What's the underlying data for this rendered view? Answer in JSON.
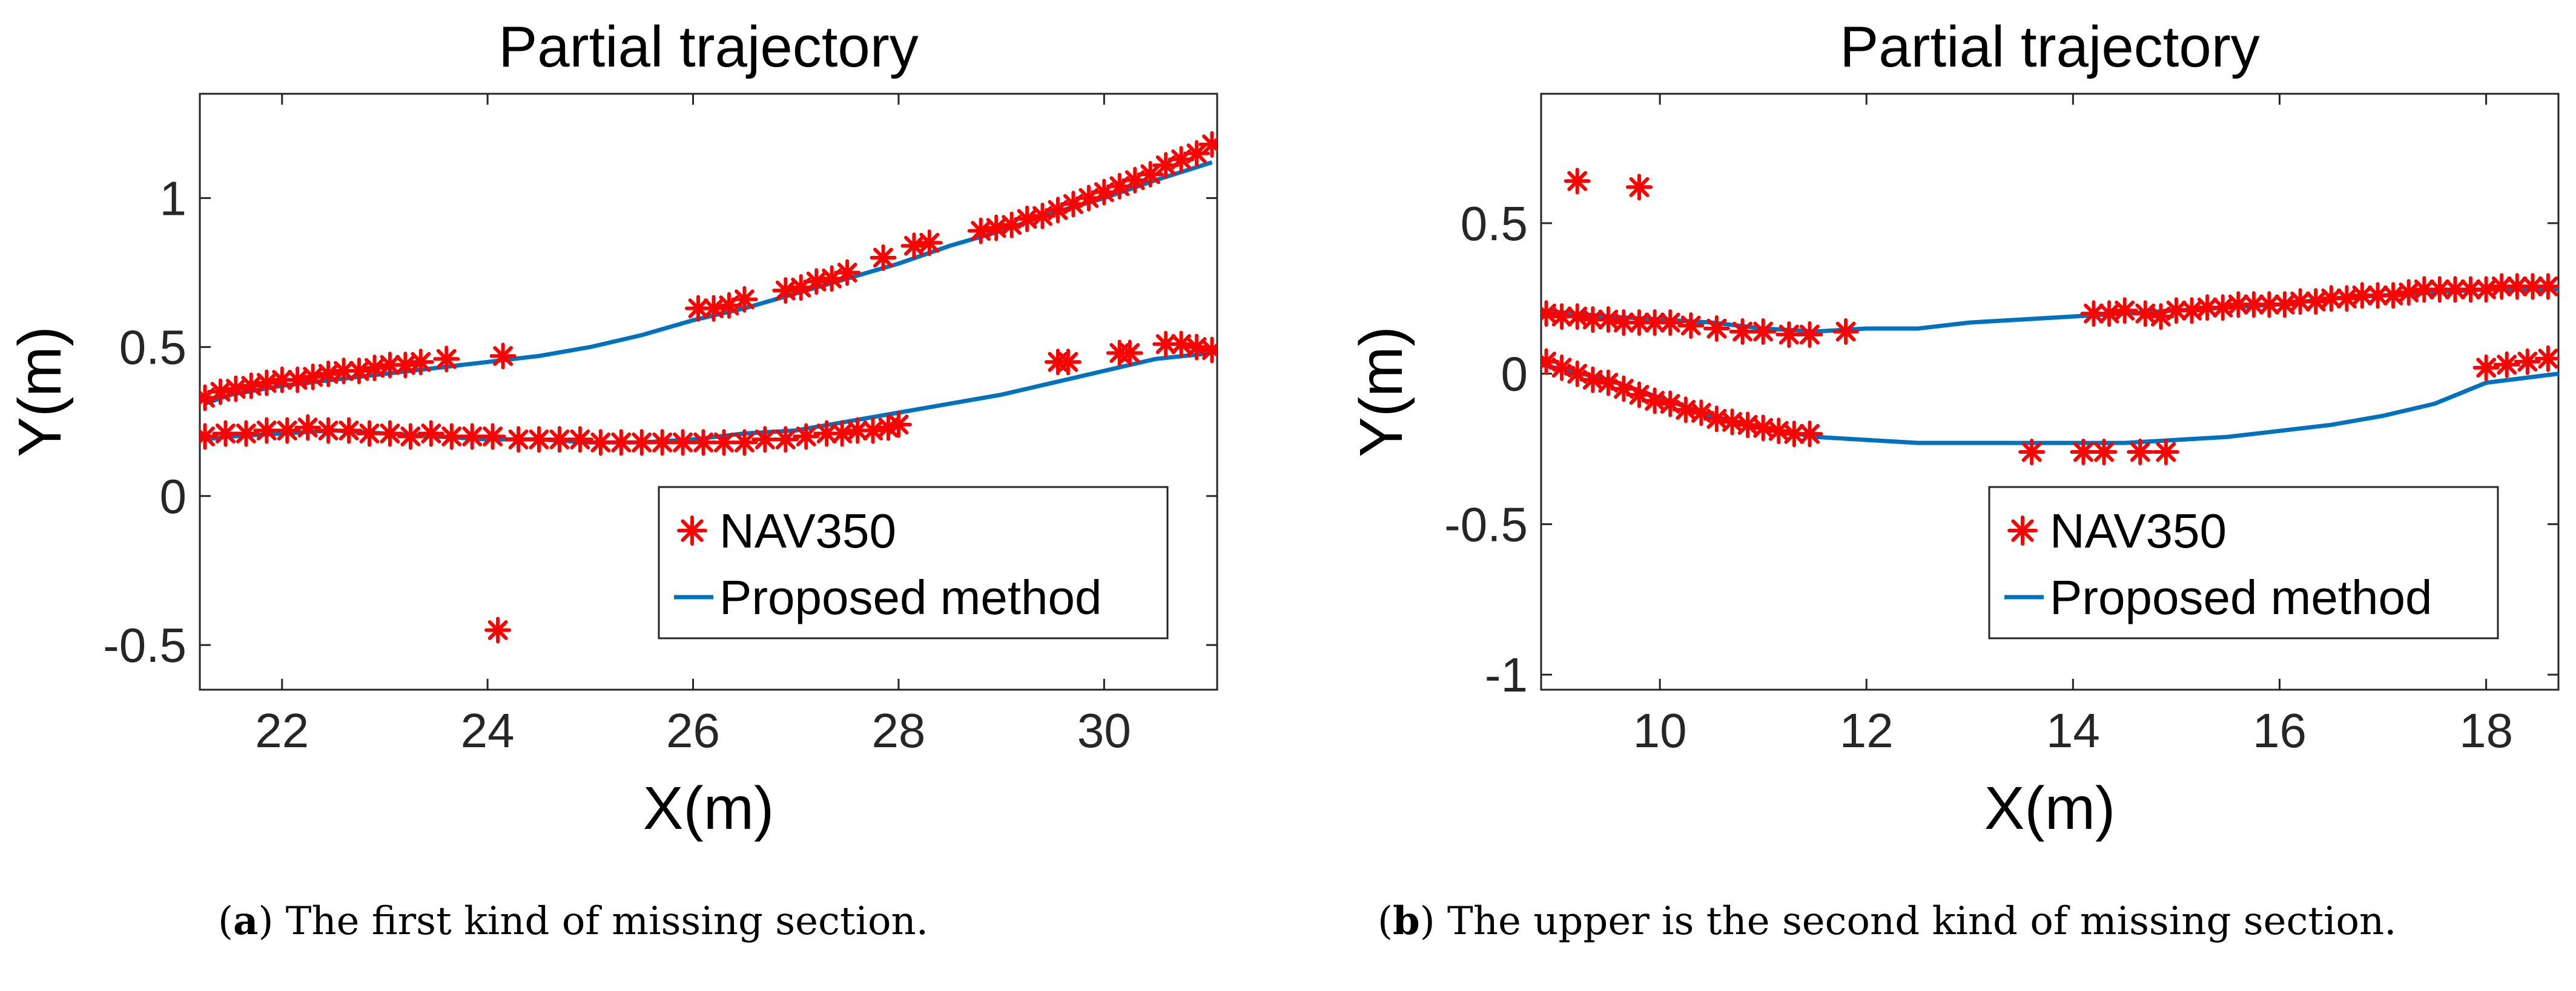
{
  "colors": {
    "nav": "#ff0000",
    "proposed": "#0072bd",
    "axis": "#262626",
    "text": "#000000"
  },
  "captions": [
    {
      "letter": "a",
      "prefix": "(",
      "suffix": ") The first kind of missing section."
    },
    {
      "letter": "b",
      "prefix": "(",
      "suffix": ") The upper is the second kind of missing section."
    }
  ],
  "chart_data": [
    {
      "type": "scatter",
      "title": "Partial trajectory",
      "xlabel": "X(m)",
      "ylabel": "Y(m)",
      "xlim": [
        21.2,
        31.1
      ],
      "ylim": [
        -0.65,
        1.35
      ],
      "xticks": [
        22,
        24,
        26,
        28,
        30
      ],
      "yticks": [
        -0.5,
        0,
        0.5,
        1
      ],
      "xtick_labels": [
        "22",
        "24",
        "26",
        "28",
        "30"
      ],
      "ytick_labels": [
        "-0.5",
        "0",
        "0.5",
        "1"
      ],
      "grid": false,
      "legend": {
        "position": "lower-right",
        "entries": [
          "NAV350",
          "Proposed method"
        ]
      },
      "series": [
        {
          "name": "NAV350",
          "type": "scatter",
          "marker": "asterisk",
          "x": [
            21.25,
            21.4,
            21.55,
            21.7,
            21.85,
            22.0,
            22.15,
            22.3,
            22.45,
            22.6,
            22.75,
            22.9,
            23.05,
            23.2,
            23.35,
            23.6,
            24.15,
            26.05,
            26.2,
            26.35,
            26.5,
            26.9,
            27.05,
            27.2,
            27.35,
            27.5,
            27.85,
            28.15,
            28.3,
            28.8,
            28.95,
            29.1,
            29.25,
            29.4,
            29.55,
            29.7,
            29.85,
            30.0,
            30.15,
            30.3,
            30.45,
            30.6,
            30.75,
            30.9,
            31.05,
            21.25,
            21.45,
            21.65,
            21.85,
            22.05,
            22.25,
            22.45,
            22.65,
            22.85,
            23.05,
            23.25,
            23.45,
            23.65,
            23.85,
            24.05,
            24.3,
            24.5,
            24.7,
            24.9,
            25.1,
            25.3,
            25.5,
            25.7,
            25.9,
            26.1,
            26.3,
            26.5,
            26.7,
            26.9,
            27.1,
            27.3,
            27.45,
            27.6,
            27.75,
            27.9,
            28.0,
            29.55,
            29.65,
            30.15,
            30.25,
            30.6,
            30.75,
            30.9,
            31.05,
            24.1
          ],
          "y": [
            0.33,
            0.35,
            0.36,
            0.37,
            0.38,
            0.39,
            0.39,
            0.4,
            0.41,
            0.42,
            0.42,
            0.43,
            0.44,
            0.44,
            0.45,
            0.46,
            0.47,
            0.63,
            0.63,
            0.64,
            0.66,
            0.69,
            0.7,
            0.72,
            0.73,
            0.75,
            0.8,
            0.84,
            0.85,
            0.89,
            0.9,
            0.91,
            0.93,
            0.94,
            0.96,
            0.98,
            1.0,
            1.02,
            1.04,
            1.06,
            1.08,
            1.11,
            1.13,
            1.15,
            1.18,
            0.2,
            0.21,
            0.21,
            0.22,
            0.22,
            0.23,
            0.22,
            0.22,
            0.21,
            0.21,
            0.2,
            0.21,
            0.2,
            0.2,
            0.2,
            0.19,
            0.19,
            0.19,
            0.19,
            0.18,
            0.18,
            0.18,
            0.18,
            0.18,
            0.18,
            0.18,
            0.18,
            0.19,
            0.19,
            0.2,
            0.21,
            0.21,
            0.22,
            0.22,
            0.23,
            0.24,
            0.45,
            0.45,
            0.48,
            0.48,
            0.51,
            0.51,
            0.5,
            0.49,
            -0.45
          ]
        },
        {
          "name": "Proposed method",
          "type": "line",
          "segments": [
            {
              "x": [
                21.25,
                21.5,
                22.0,
                22.5,
                23.0,
                23.5,
                24.0,
                24.5,
                25.0,
                25.5,
                26.0,
                26.5,
                27.0,
                27.5,
                28.0,
                28.5,
                29.0,
                29.5,
                30.0,
                30.5,
                31.05
              ],
              "y": [
                0.31,
                0.34,
                0.37,
                0.39,
                0.41,
                0.43,
                0.45,
                0.47,
                0.5,
                0.54,
                0.59,
                0.63,
                0.68,
                0.73,
                0.78,
                0.84,
                0.89,
                0.95,
                1.0,
                1.06,
                1.12
              ]
            },
            {
              "x": [
                21.25,
                21.5,
                22.0,
                22.5,
                23.0,
                23.5,
                24.0,
                24.5,
                25.0,
                25.5,
                26.0,
                26.5,
                27.0,
                27.5,
                28.0,
                28.5,
                29.0,
                29.5,
                30.0,
                30.5,
                31.05
              ],
              "y": [
                0.19,
                0.2,
                0.21,
                0.22,
                0.21,
                0.2,
                0.19,
                0.19,
                0.18,
                0.18,
                0.19,
                0.21,
                0.22,
                0.25,
                0.28,
                0.31,
                0.34,
                0.38,
                0.42,
                0.46,
                0.48
              ]
            }
          ]
        }
      ]
    },
    {
      "type": "scatter",
      "title": "Partial trajectory",
      "xlabel": "X(m)",
      "ylabel": "Y(m)",
      "xlim": [
        8.85,
        18.7
      ],
      "ylim": [
        -1.05,
        0.93
      ],
      "xticks": [
        10,
        12,
        14,
        16,
        18
      ],
      "yticks": [
        -1,
        -0.5,
        0,
        0.5
      ],
      "xtick_labels": [
        "10",
        "12",
        "14",
        "16",
        "18"
      ],
      "ytick_labels": [
        "-1",
        "-0.5",
        "0",
        "0.5"
      ],
      "grid": false,
      "legend": {
        "position": "lower-right",
        "entries": [
          "NAV350",
          "Proposed method"
        ]
      },
      "series": [
        {
          "name": "NAV350",
          "type": "scatter",
          "marker": "asterisk",
          "x": [
            9.2,
            9.8,
            8.9,
            9.05,
            9.2,
            9.35,
            9.5,
            9.65,
            9.8,
            9.95,
            10.1,
            10.3,
            10.55,
            10.8,
            11.0,
            11.25,
            11.45,
            11.8,
            14.2,
            14.35,
            14.5,
            14.7,
            14.85,
            15.0,
            15.15,
            15.3,
            15.45,
            15.6,
            15.75,
            15.9,
            16.05,
            16.2,
            16.35,
            16.5,
            16.65,
            16.8,
            16.95,
            17.1,
            17.25,
            17.4,
            17.55,
            17.7,
            17.85,
            18.0,
            18.15,
            18.3,
            18.45,
            18.6,
            8.9,
            9.05,
            9.2,
            9.35,
            9.5,
            9.65,
            9.8,
            9.95,
            10.1,
            10.25,
            10.4,
            10.55,
            10.7,
            10.85,
            11.0,
            11.15,
            11.3,
            11.45,
            13.6,
            14.1,
            14.3,
            14.65,
            14.9,
            18.0,
            18.2,
            18.4,
            18.6
          ],
          "y": [
            0.64,
            0.62,
            0.2,
            0.19,
            0.19,
            0.18,
            0.18,
            0.17,
            0.17,
            0.17,
            0.17,
            0.16,
            0.15,
            0.14,
            0.14,
            0.13,
            0.13,
            0.14,
            0.2,
            0.2,
            0.21,
            0.2,
            0.19,
            0.21,
            0.21,
            0.22,
            0.22,
            0.23,
            0.23,
            0.23,
            0.23,
            0.24,
            0.24,
            0.25,
            0.25,
            0.26,
            0.26,
            0.26,
            0.27,
            0.28,
            0.28,
            0.28,
            0.28,
            0.28,
            0.29,
            0.29,
            0.29,
            0.29,
            0.04,
            0.02,
            0.0,
            -0.02,
            -0.03,
            -0.05,
            -0.07,
            -0.09,
            -0.1,
            -0.12,
            -0.13,
            -0.15,
            -0.16,
            -0.17,
            -0.18,
            -0.19,
            -0.2,
            -0.2,
            -0.26,
            -0.26,
            -0.26,
            -0.26,
            -0.26,
            0.02,
            0.03,
            0.04,
            0.05
          ],
          "note_omitted": null
        },
        {
          "name": "Proposed method",
          "type": "line",
          "segments": [
            {
              "x": [
                8.85,
                9.5,
                10.0,
                10.5,
                11.0,
                11.5,
                12.0,
                12.5,
                13.0,
                13.5,
                14.0,
                14.5,
                15.0,
                15.5,
                16.0,
                16.5,
                17.0,
                17.5,
                18.0,
                18.7
              ],
              "y": [
                0.21,
                0.19,
                0.18,
                0.17,
                0.15,
                0.14,
                0.15,
                0.15,
                0.17,
                0.18,
                0.19,
                0.2,
                0.21,
                0.22,
                0.23,
                0.25,
                0.26,
                0.27,
                0.28,
                0.28
              ]
            },
            {
              "x": [
                8.85,
                9.5,
                10.0,
                10.5,
                11.0,
                11.5,
                12.0,
                12.5,
                13.0,
                13.5,
                14.0,
                14.5,
                15.0,
                15.5,
                16.0,
                16.5,
                17.0,
                17.5,
                18.0,
                18.7
              ],
              "y": [
                0.03,
                -0.02,
                -0.08,
                -0.14,
                -0.18,
                -0.21,
                -0.22,
                -0.23,
                -0.23,
                -0.23,
                -0.23,
                -0.23,
                -0.22,
                -0.21,
                -0.19,
                -0.17,
                -0.14,
                -0.1,
                -0.03,
                0.0
              ]
            }
          ]
        }
      ]
    }
  ]
}
